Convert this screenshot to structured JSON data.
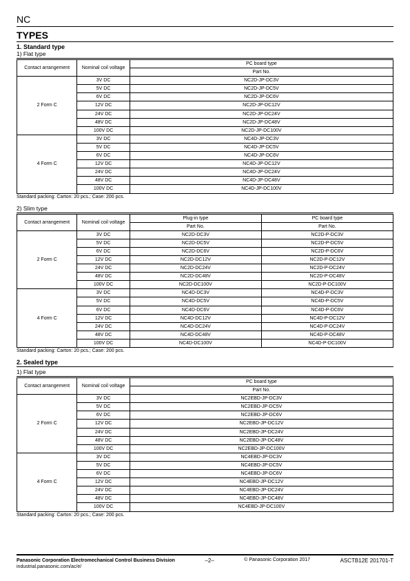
{
  "header": {
    "product_code": "NC",
    "section_title": "TYPES"
  },
  "standard": {
    "heading": "1. Standard type",
    "flat": {
      "label": "1) Flat type",
      "columns": {
        "contact": "Contact arrangement",
        "voltage": "Nominal coil voltage",
        "pcboard": "PC board type",
        "partno": "Part No."
      },
      "groups": [
        {
          "contact": "2 Form C",
          "rows": [
            {
              "v": "3V DC",
              "p": "NC2D-JP-DC3V"
            },
            {
              "v": "5V DC",
              "p": "NC2D-JP-DC5V"
            },
            {
              "v": "6V DC",
              "p": "NC2D-JP-DC6V"
            },
            {
              "v": "12V DC",
              "p": "NC2D-JP-DC12V"
            },
            {
              "v": "24V DC",
              "p": "NC2D-JP-DC24V"
            },
            {
              "v": "48V DC",
              "p": "NC2D-JP-DC48V"
            },
            {
              "v": "100V DC",
              "p": "NC2D-JP-DC100V"
            }
          ]
        },
        {
          "contact": "4 Form C",
          "rows": [
            {
              "v": "3V DC",
              "p": "NC4D-JP-DC3V"
            },
            {
              "v": "5V DC",
              "p": "NC4D-JP-DC5V"
            },
            {
              "v": "6V DC",
              "p": "NC4D-JP-DC6V"
            },
            {
              "v": "12V DC",
              "p": "NC4D-JP-DC12V"
            },
            {
              "v": "24V DC",
              "p": "NC4D-JP-DC24V"
            },
            {
              "v": "48V DC",
              "p": "NC4D-JP-DC48V"
            },
            {
              "v": "100V DC",
              "p": "NC4D-JP-DC100V"
            }
          ]
        }
      ],
      "note": "Standard packing: Carton: 20 pcs.; Case: 200 pcs."
    },
    "slim": {
      "label": "2) Slim type",
      "columns": {
        "contact": "Contact arrangement",
        "voltage": "Nominal coil voltage",
        "plugin": "Plug-in type",
        "pcboard": "PC board type",
        "partno": "Part No."
      },
      "groups": [
        {
          "contact": "2 Form C",
          "rows": [
            {
              "v": "3V DC",
              "pi": "NC2D-DC3V",
              "pc": "NC2D-P-DC3V"
            },
            {
              "v": "5V DC",
              "pi": "NC2D-DC5V",
              "pc": "NC2D-P-DC5V"
            },
            {
              "v": "6V DC",
              "pi": "NC2D-DC6V",
              "pc": "NC2D-P-DC6V"
            },
            {
              "v": "12V DC",
              "pi": "NC2D-DC12V",
              "pc": "NC2D-P-DC12V"
            },
            {
              "v": "24V DC",
              "pi": "NC2D-DC24V",
              "pc": "NC2D-P-DC24V"
            },
            {
              "v": "48V DC",
              "pi": "NC2D-DC48V",
              "pc": "NC2D-P-DC48V"
            },
            {
              "v": "100V DC",
              "pi": "NC2D-DC100V",
              "pc": "NC2D-P-DC100V"
            }
          ]
        },
        {
          "contact": "4 Form C",
          "rows": [
            {
              "v": "3V DC",
              "pi": "NC4D-DC3V",
              "pc": "NC4D-P-DC3V"
            },
            {
              "v": "5V DC",
              "pi": "NC4D-DC5V",
              "pc": "NC4D-P-DC5V"
            },
            {
              "v": "6V DC",
              "pi": "NC4D-DC6V",
              "pc": "NC4D-P-DC6V"
            },
            {
              "v": "12V DC",
              "pi": "NC4D-DC12V",
              "pc": "NC4D-P-DC12V"
            },
            {
              "v": "24V DC",
              "pi": "NC4D-DC24V",
              "pc": "NC4D-P-DC24V"
            },
            {
              "v": "48V DC",
              "pi": "NC4D-DC48V",
              "pc": "NC4D-P-DC48V"
            },
            {
              "v": "100V DC",
              "pi": "NC4D-DC100V",
              "pc": "NC4D-P-DC100V"
            }
          ]
        }
      ],
      "note": "Standard packing: Carton: 20 pcs.; Case: 200 pcs."
    }
  },
  "sealed": {
    "heading": "2. Sealed type",
    "flat": {
      "label": "1) Flat type",
      "columns": {
        "contact": "Contact arrangement",
        "voltage": "Nominal coil voltage",
        "pcboard": "PC board type",
        "partno": "Part No."
      },
      "groups": [
        {
          "contact": "2 Form C",
          "rows": [
            {
              "v": "3V DC",
              "p": "NC2EBD-JP-DC3V"
            },
            {
              "v": "5V DC",
              "p": "NC2EBD-JP-DC5V"
            },
            {
              "v": "6V DC",
              "p": "NC2EBD-JP-DC6V"
            },
            {
              "v": "12V DC",
              "p": "NC2EBD-JP-DC12V"
            },
            {
              "v": "24V DC",
              "p": "NC2EBD-JP-DC24V"
            },
            {
              "v": "48V DC",
              "p": "NC2EBD-JP-DC48V"
            },
            {
              "v": "100V DC",
              "p": "NC2EBD-JP-DC100V"
            }
          ]
        },
        {
          "contact": "4 Form C",
          "rows": [
            {
              "v": "3V DC",
              "p": "NC4EBD-JP-DC3V"
            },
            {
              "v": "5V DC",
              "p": "NC4EBD-JP-DC5V"
            },
            {
              "v": "6V DC",
              "p": "NC4EBD-JP-DC6V"
            },
            {
              "v": "12V DC",
              "p": "NC4EBD-JP-DC12V"
            },
            {
              "v": "24V DC",
              "p": "NC4EBD-JP-DC24V"
            },
            {
              "v": "48V DC",
              "p": "NC4EBD-JP-DC48V"
            },
            {
              "v": "100V DC",
              "p": "NC4EBD-JP-DC100V"
            }
          ]
        }
      ],
      "note": "Standard packing: Carton: 20 pcs.; Case: 200 pcs."
    }
  },
  "footer": {
    "company": "Panasonic Corporation Electromechanical Control Business Division",
    "url": "industrial.panasonic.com/ac/e/",
    "page": "–2–",
    "copyright": "© Panasonic Corporation 2017",
    "docid": "ASCTB12E   201701-T"
  },
  "col_widths": {
    "contact": "16%",
    "voltage": "14%",
    "single": "70%",
    "half": "35%"
  }
}
